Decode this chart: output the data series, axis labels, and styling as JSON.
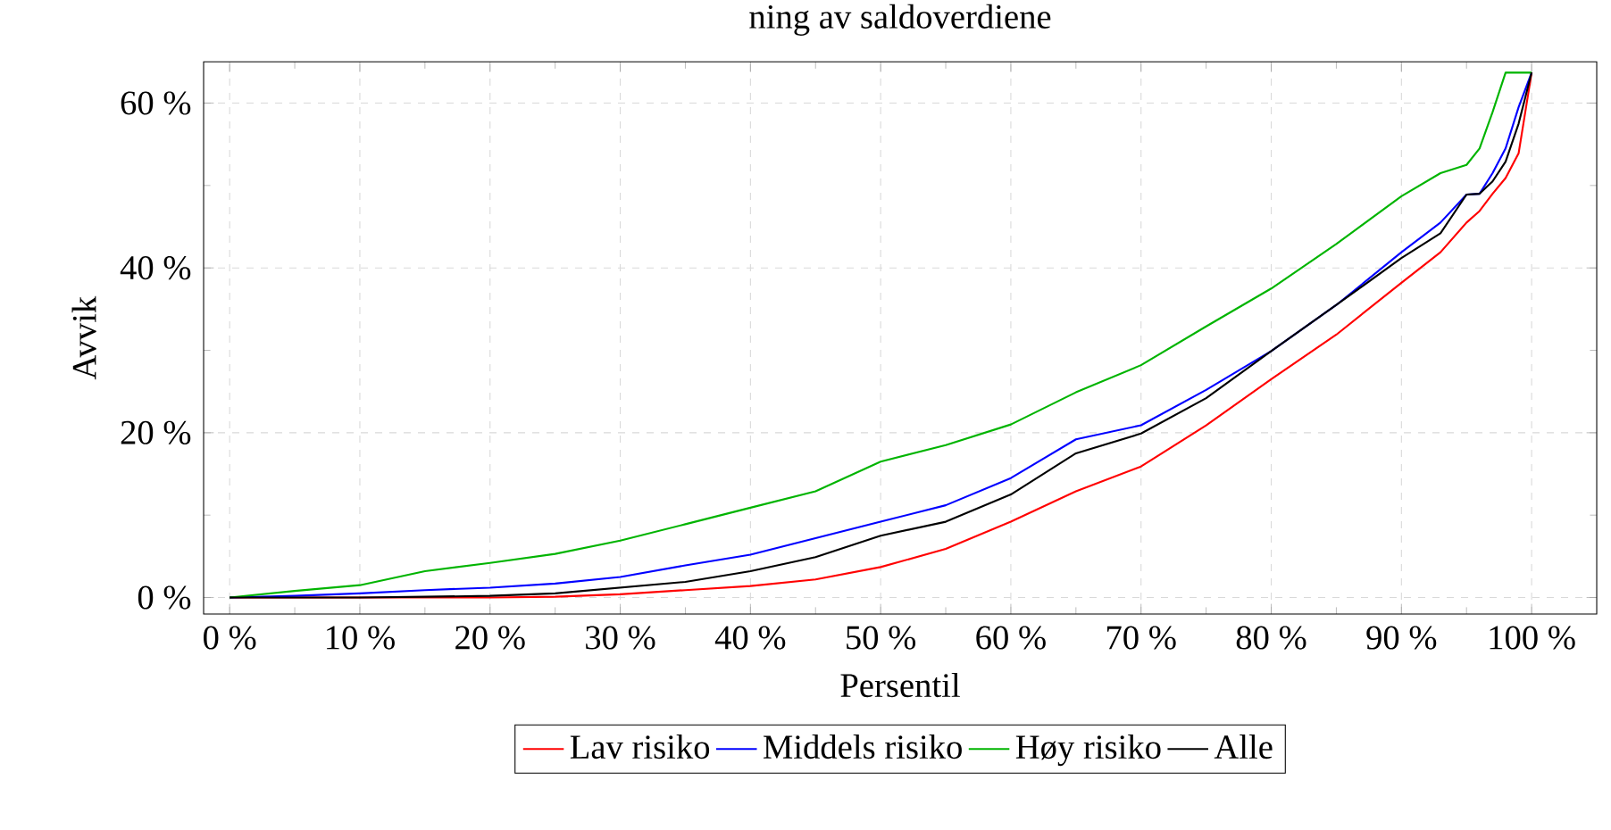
{
  "chart_data": {
    "type": "line",
    "title": "ning av saldoverdiene",
    "xlabel": "Persentil",
    "ylabel": "Avvik",
    "x": [
      0,
      5,
      10,
      15,
      20,
      25,
      30,
      35,
      40,
      45,
      50,
      55,
      60,
      65,
      70,
      75,
      80,
      85,
      90,
      93,
      95,
      96,
      97,
      98,
      99,
      100
    ],
    "series": [
      {
        "name": "Lav risiko",
        "color": "#ff0000",
        "values": [
          0,
          0,
          0,
          0,
          0,
          0.1,
          0.4,
          0.9,
          1.4,
          2.2,
          3.7,
          5.9,
          9.2,
          12.9,
          15.9,
          20.9,
          26.5,
          31.9,
          38.2,
          41.9,
          45.5,
          46.9,
          49,
          50.9,
          53.9,
          63.7
        ]
      },
      {
        "name": "Middels risiko",
        "color": "#0000ff",
        "values": [
          0,
          0.2,
          0.5,
          0.9,
          1.2,
          1.7,
          2.5,
          3.9,
          5.2,
          7.2,
          9.2,
          11.2,
          14.5,
          19.2,
          20.9,
          25.2,
          29.9,
          35.5,
          41.9,
          45.5,
          48.9,
          49,
          51.5,
          54.5,
          59.5,
          63.7
        ]
      },
      {
        "name": "Høy risiko",
        "color": "#00b400",
        "values": [
          0,
          0.8,
          1.5,
          3.2,
          4.2,
          5.3,
          6.9,
          8.9,
          10.9,
          12.9,
          16.5,
          18.5,
          21,
          24.9,
          28.2,
          32.9,
          37.5,
          42.9,
          48.7,
          51.5,
          52.5,
          54.5,
          58.9,
          63.7,
          63.7,
          63.7
        ]
      },
      {
        "name": "Alle",
        "color": "#000000",
        "values": [
          0,
          0,
          0,
          0.1,
          0.2,
          0.5,
          1.2,
          1.9,
          3.2,
          4.9,
          7.5,
          9.2,
          12.5,
          17.5,
          19.9,
          24.2,
          29.9,
          35.5,
          41.2,
          44.2,
          48.9,
          49,
          50.5,
          52.9,
          57.5,
          63.7
        ]
      }
    ],
    "xlim": [
      -2,
      105
    ],
    "ylim": [
      -2,
      65
    ],
    "xticks": [
      {
        "value": 0,
        "label": "0 %"
      },
      {
        "value": 10,
        "label": "10 %"
      },
      {
        "value": 20,
        "label": "20 %"
      },
      {
        "value": 30,
        "label": "30 %"
      },
      {
        "value": 40,
        "label": "40 %"
      },
      {
        "value": 50,
        "label": "50 %"
      },
      {
        "value": 60,
        "label": "60 %"
      },
      {
        "value": 70,
        "label": "70 %"
      },
      {
        "value": 80,
        "label": "80 %"
      },
      {
        "value": 90,
        "label": "90 %"
      },
      {
        "value": 100,
        "label": "100 %"
      }
    ],
    "yticks": [
      {
        "value": 0,
        "label": "0 %"
      },
      {
        "value": 20,
        "label": "20 %"
      },
      {
        "value": 40,
        "label": "40 %"
      },
      {
        "value": 60,
        "label": "60 %"
      }
    ],
    "grid": true,
    "legend": "bottom",
    "marker": "none",
    "line_style": "solid"
  }
}
